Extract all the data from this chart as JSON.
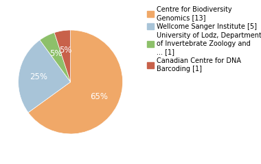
{
  "labels": [
    "Centre for Biodiversity\nGenomics [13]",
    "Wellcome Sanger Institute [5]",
    "University of Lodz, Department\nof Invertebrate Zoology and\n... [1]",
    "Canadian Centre for DNA\nBarcoding [1]"
  ],
  "values": [
    65,
    25,
    5,
    5
  ],
  "colors": [
    "#F0A868",
    "#A8C4D8",
    "#8DC06A",
    "#C8614A"
  ],
  "pct_labels": [
    "65%",
    "25%",
    "5%",
    "5%"
  ],
  "background_color": "#ffffff",
  "legend_fontsize": 7.0,
  "pct_fontsize": 8.5
}
